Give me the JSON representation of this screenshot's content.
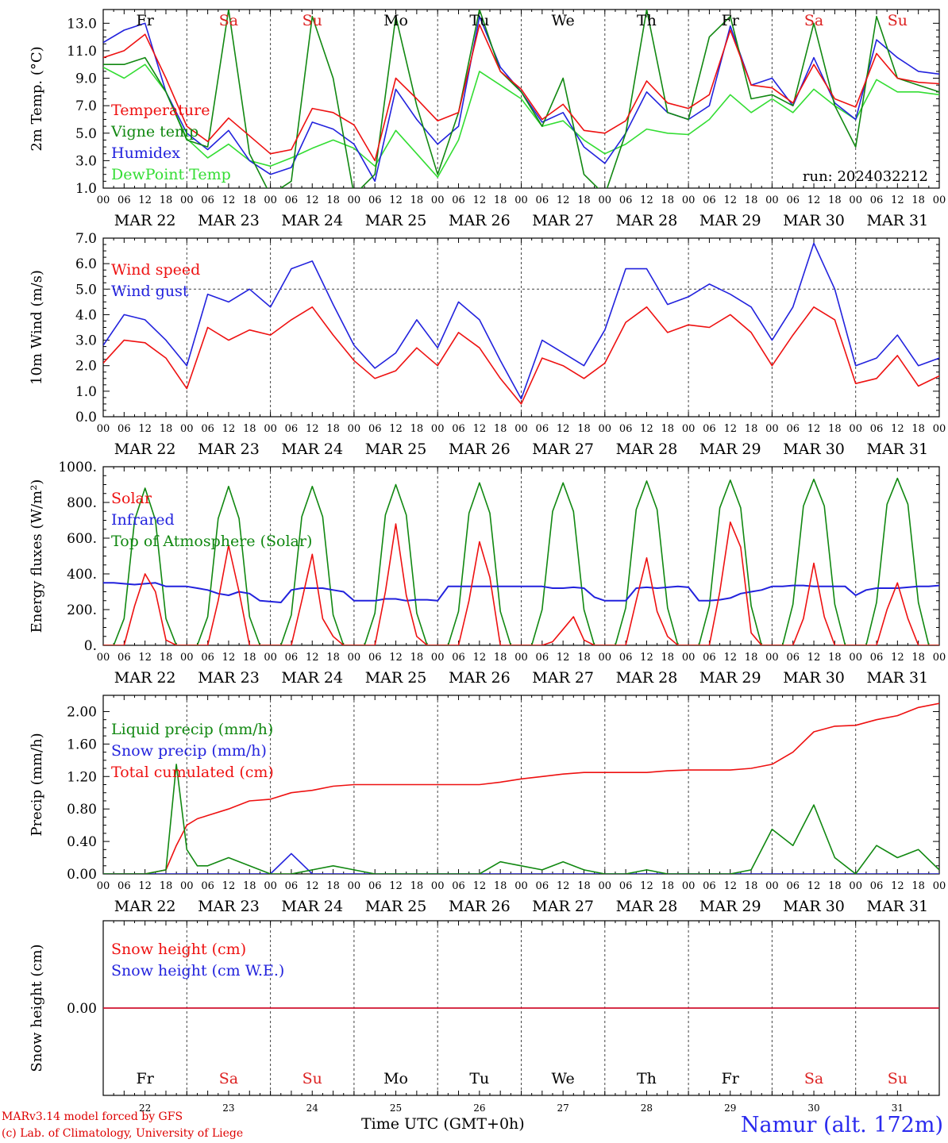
{
  "footer": {
    "model": "MARv3.14 model forced by GFS",
    "credit": "(c) Lab. of Climatology, University of Liege",
    "xlabel": "Time UTC (GMT+0h)",
    "station": "Namur (alt. 172m)"
  },
  "timeline": {
    "day_names": [
      "Fr",
      "Sa",
      "Su",
      "Mo",
      "Tu",
      "We",
      "Th",
      "Fr",
      "Sa",
      "Su"
    ],
    "date_labels": [
      "MAR 22",
      "MAR 23",
      "MAR 24",
      "MAR 25",
      "MAR 26",
      "MAR 27",
      "MAR 28",
      "MAR 29",
      "MAR 30",
      "MAR 31"
    ],
    "day_numbers": [
      "22",
      "23",
      "24",
      "25",
      "26",
      "27",
      "28",
      "29",
      "30",
      "31"
    ],
    "hour_labels": [
      "00",
      "06",
      "12",
      "18"
    ],
    "weekend_color": "#dd2222",
    "weekday_color": "#000000"
  },
  "chart_data": [
    {
      "type": "line",
      "id": "temp",
      "ylabel": "2m Temp. (°C)",
      "ylim": [
        1.0,
        14.0
      ],
      "yticks": [
        1.0,
        3.0,
        5.0,
        7.0,
        9.0,
        11.0,
        13.0
      ],
      "tick_decimals": 1,
      "annotation": "run: 2024032212",
      "show_day_names": true,
      "x_hours": [
        0,
        6,
        12,
        18,
        24,
        30,
        36,
        42,
        48,
        54,
        60,
        66,
        72,
        78,
        84,
        90,
        96,
        102,
        108,
        114,
        120,
        126,
        132,
        138,
        144,
        150,
        156,
        162,
        168,
        174,
        180,
        186,
        192,
        198,
        204,
        210,
        216,
        222,
        228,
        234,
        240
      ],
      "series": [
        {
          "name": "Temperature",
          "color": "#ee1111",
          "values": [
            10.5,
            11.0,
            12.2,
            9.0,
            5.5,
            4.4,
            6.1,
            4.8,
            3.5,
            3.8,
            6.8,
            6.5,
            5.6,
            3.0,
            9.0,
            7.5,
            5.9,
            6.5,
            12.9,
            9.5,
            8.2,
            6.0,
            7.1,
            5.2,
            5.0,
            5.9,
            8.8,
            7.2,
            6.8,
            7.8,
            12.5,
            8.5,
            8.3,
            7.2,
            10.0,
            7.5,
            6.9,
            10.8,
            9.0,
            8.7,
            8.6
          ]
        },
        {
          "name": "Vigne temp",
          "color": "#118811",
          "values": [
            10.0,
            10.0,
            10.5,
            8.0,
            4.5,
            4.0,
            14.0,
            3.5,
            0.5,
            1.5,
            13.5,
            9.0,
            0.5,
            2.0,
            13.5,
            7.0,
            2.0,
            6.5,
            14.0,
            9.5,
            8.0,
            5.5,
            9.0,
            2.0,
            0.5,
            5.0,
            14.0,
            6.5,
            6.0,
            12.0,
            13.5,
            7.5,
            7.8,
            7.0,
            13.0,
            7.0,
            4.0,
            13.5,
            9.0,
            8.5,
            8.0
          ]
        },
        {
          "name": "Humidex",
          "color": "#2222dd",
          "values": [
            11.6,
            12.5,
            13.0,
            8.0,
            5.0,
            3.8,
            5.2,
            3.0,
            2.0,
            2.5,
            5.8,
            5.3,
            4.2,
            1.5,
            8.2,
            6.0,
            4.2,
            5.5,
            13.5,
            9.8,
            8.0,
            5.8,
            6.5,
            4.0,
            2.8,
            5.0,
            8.0,
            6.5,
            6.0,
            7.0,
            12.8,
            8.5,
            9.0,
            7.0,
            10.5,
            7.2,
            6.0,
            11.8,
            10.5,
            9.5,
            9.3
          ]
        },
        {
          "name": "DewPoint Temp",
          "color": "#33dd33",
          "values": [
            9.8,
            9.0,
            10.0,
            8.0,
            4.6,
            3.2,
            4.2,
            3.0,
            2.6,
            3.2,
            3.9,
            4.5,
            3.9,
            2.6,
            5.2,
            3.5,
            1.8,
            4.5,
            9.5,
            8.5,
            7.5,
            5.5,
            5.9,
            4.5,
            3.5,
            4.2,
            5.3,
            5.0,
            4.9,
            6.0,
            7.8,
            6.5,
            7.5,
            6.5,
            8.2,
            7.0,
            6.0,
            8.9,
            8.0,
            8.0,
            7.8
          ]
        }
      ]
    },
    {
      "type": "line",
      "id": "wind",
      "ylabel": "10m Wind (m/s)",
      "ylim": [
        0.0,
        7.0
      ],
      "yticks": [
        0.0,
        1.0,
        2.0,
        3.0,
        4.0,
        5.0,
        6.0,
        7.0
      ],
      "tick_decimals": 1,
      "reference_line": 5.0,
      "x_hours": [
        0,
        6,
        12,
        18,
        24,
        30,
        36,
        42,
        48,
        54,
        60,
        66,
        72,
        78,
        84,
        90,
        96,
        102,
        108,
        114,
        120,
        126,
        132,
        138,
        144,
        150,
        156,
        162,
        168,
        174,
        180,
        186,
        192,
        198,
        204,
        210,
        216,
        222,
        228,
        234,
        240
      ],
      "series": [
        {
          "name": "Wind speed",
          "color": "#ee1111",
          "values": [
            2.1,
            3.0,
            2.9,
            2.3,
            1.1,
            3.5,
            3.0,
            3.4,
            3.2,
            3.8,
            4.3,
            3.2,
            2.2,
            1.5,
            1.8,
            2.7,
            2.0,
            3.3,
            2.7,
            1.5,
            0.5,
            2.3,
            2.0,
            1.5,
            2.1,
            3.7,
            4.3,
            3.3,
            3.6,
            3.5,
            4.0,
            3.3,
            2.0,
            3.2,
            4.3,
            3.8,
            1.3,
            1.5,
            2.4,
            1.2,
            1.6
          ]
        },
        {
          "name": "Wind gust",
          "color": "#2222dd",
          "values": [
            2.8,
            4.0,
            3.8,
            3.0,
            2.0,
            4.8,
            4.5,
            5.0,
            4.3,
            5.8,
            6.1,
            4.4,
            2.8,
            1.9,
            2.5,
            3.8,
            2.7,
            4.5,
            3.8,
            2.2,
            0.7,
            3.0,
            2.5,
            2.0,
            3.4,
            5.8,
            5.8,
            4.4,
            4.7,
            5.2,
            4.8,
            4.3,
            3.0,
            4.3,
            6.8,
            5.0,
            2.0,
            2.3,
            3.2,
            2.0,
            2.3
          ]
        }
      ]
    },
    {
      "type": "line",
      "id": "energy",
      "ylabel": "Energy fluxes (W/m²)",
      "ylim": [
        0,
        1000
      ],
      "yticks": [
        0,
        200,
        400,
        600,
        800,
        1000
      ],
      "tick_decimals": 0,
      "tick_suffix": ".",
      "x_hours": [
        0,
        3,
        6,
        9,
        12,
        15,
        18,
        21,
        24,
        27,
        30,
        33,
        36,
        39,
        42,
        45,
        48,
        51,
        54,
        57,
        60,
        63,
        66,
        69,
        72,
        75,
        78,
        81,
        84,
        87,
        90,
        93,
        96,
        99,
        102,
        105,
        108,
        111,
        114,
        117,
        120,
        123,
        126,
        129,
        132,
        135,
        138,
        141,
        144,
        147,
        150,
        153,
        156,
        159,
        162,
        165,
        168,
        171,
        174,
        177,
        180,
        183,
        186,
        189,
        192,
        195,
        198,
        201,
        204,
        207,
        210,
        213,
        216,
        219,
        222,
        225,
        228,
        231,
        234,
        237,
        240
      ],
      "series": [
        {
          "name": "Solar",
          "color": "#ee1111",
          "values": [
            0,
            0,
            0,
            220,
            400,
            300,
            30,
            0,
            0,
            0,
            0,
            250,
            560,
            300,
            0,
            0,
            0,
            0,
            0,
            250,
            510,
            150,
            50,
            0,
            0,
            0,
            0,
            300,
            680,
            280,
            50,
            0,
            0,
            0,
            0,
            250,
            580,
            380,
            0,
            0,
            0,
            0,
            0,
            20,
            90,
            160,
            30,
            0,
            0,
            0,
            0,
            250,
            490,
            190,
            50,
            0,
            0,
            0,
            0,
            300,
            690,
            550,
            70,
            0,
            0,
            0,
            0,
            150,
            460,
            160,
            0,
            0,
            0,
            0,
            0,
            200,
            350,
            150,
            0,
            0,
            0
          ]
        },
        {
          "name": "Infrared",
          "color": "#2222dd",
          "values": [
            350,
            350,
            345,
            340,
            345,
            350,
            330,
            330,
            330,
            320,
            310,
            290,
            280,
            300,
            290,
            250,
            245,
            240,
            310,
            320,
            320,
            320,
            310,
            300,
            250,
            250,
            250,
            260,
            260,
            250,
            255,
            255,
            250,
            330,
            330,
            330,
            330,
            330,
            330,
            330,
            330,
            330,
            330,
            320,
            320,
            325,
            320,
            270,
            250,
            250,
            250,
            320,
            325,
            320,
            325,
            330,
            325,
            250,
            250,
            255,
            265,
            290,
            300,
            310,
            330,
            330,
            335,
            335,
            330,
            330,
            330,
            330,
            280,
            310,
            320,
            320,
            320,
            325,
            330,
            330,
            335
          ]
        },
        {
          "name": "Top of Atmosphere (Solar)",
          "color": "#118811",
          "values": [
            0,
            0,
            150,
            700,
            880,
            700,
            150,
            0,
            0,
            0,
            160,
            710,
            890,
            710,
            160,
            0,
            0,
            0,
            170,
            720,
            890,
            720,
            170,
            0,
            0,
            0,
            180,
            730,
            900,
            730,
            180,
            0,
            0,
            0,
            190,
            740,
            910,
            740,
            190,
            0,
            0,
            0,
            200,
            750,
            910,
            750,
            200,
            0,
            0,
            0,
            210,
            760,
            920,
            760,
            210,
            0,
            0,
            0,
            220,
            770,
            925,
            770,
            220,
            0,
            0,
            0,
            230,
            780,
            930,
            780,
            230,
            0,
            0,
            0,
            240,
            790,
            935,
            790,
            240,
            0,
            0
          ]
        }
      ]
    },
    {
      "type": "line",
      "id": "precip",
      "ylabel": "Precip (mm/h)",
      "ylim": [
        0.0,
        2.2
      ],
      "yticks": [
        0.0,
        0.4,
        0.8,
        1.2,
        1.6,
        2.0
      ],
      "tick_decimals": 2,
      "x_hours": [
        0,
        6,
        12,
        18,
        21,
        24,
        27,
        30,
        36,
        42,
        48,
        54,
        60,
        66,
        72,
        78,
        84,
        90,
        96,
        102,
        108,
        114,
        120,
        126,
        132,
        138,
        144,
        150,
        156,
        162,
        168,
        174,
        180,
        186,
        192,
        198,
        204,
        210,
        216,
        222,
        228,
        234,
        240
      ],
      "series": [
        {
          "name": "Liquid precip (mm/h)",
          "color": "#118811",
          "values": [
            0,
            0,
            0,
            0.05,
            1.35,
            0.3,
            0.1,
            0.1,
            0.2,
            0.1,
            0,
            0,
            0.05,
            0.1,
            0.05,
            0,
            0,
            0,
            0,
            0,
            0,
            0.15,
            0.1,
            0.05,
            0.15,
            0.05,
            0,
            0,
            0.05,
            0,
            0,
            0,
            0,
            0.05,
            0.55,
            0.35,
            0.85,
            0.2,
            0,
            0.35,
            0.2,
            0.3,
            0.05
          ]
        },
        {
          "name": "Snow precip (mm/h)",
          "color": "#2222dd",
          "values": [
            0,
            0,
            0,
            0,
            0,
            0,
            0,
            0,
            0,
            0,
            0,
            0.25,
            0,
            0,
            0,
            0,
            0,
            0,
            0,
            0,
            0,
            0,
            0,
            0,
            0,
            0,
            0,
            0,
            0,
            0,
            0,
            0,
            0,
            0,
            0,
            0,
            0,
            0,
            0,
            0,
            0,
            0,
            0
          ]
        },
        {
          "name": "Total cumulated (cm)",
          "color": "#ee1111",
          "values": [
            0,
            0,
            0,
            0.05,
            0.35,
            0.6,
            0.68,
            0.72,
            0.8,
            0.9,
            0.92,
            1.0,
            1.03,
            1.08,
            1.1,
            1.1,
            1.1,
            1.1,
            1.1,
            1.1,
            1.1,
            1.13,
            1.17,
            1.2,
            1.23,
            1.25,
            1.25,
            1.25,
            1.25,
            1.27,
            1.28,
            1.28,
            1.28,
            1.3,
            1.35,
            1.5,
            1.75,
            1.82,
            1.83,
            1.9,
            1.95,
            2.05,
            2.1
          ]
        }
      ]
    },
    {
      "type": "line",
      "id": "snow",
      "ylabel": "Snow height (cm)",
      "ylim": [
        -1.0,
        1.0
      ],
      "yticks": [
        0.0
      ],
      "tick_decimals": 2,
      "bottom_day_labels": true,
      "x_hours": [
        0,
        240
      ],
      "series": [
        {
          "name": "Snow height (cm)",
          "color": "#ee1111",
          "values": [
            0,
            0
          ]
        },
        {
          "name": "Snow height (cm W.E.)",
          "color": "#2222dd",
          "values": [
            0,
            0
          ]
        }
      ]
    }
  ]
}
